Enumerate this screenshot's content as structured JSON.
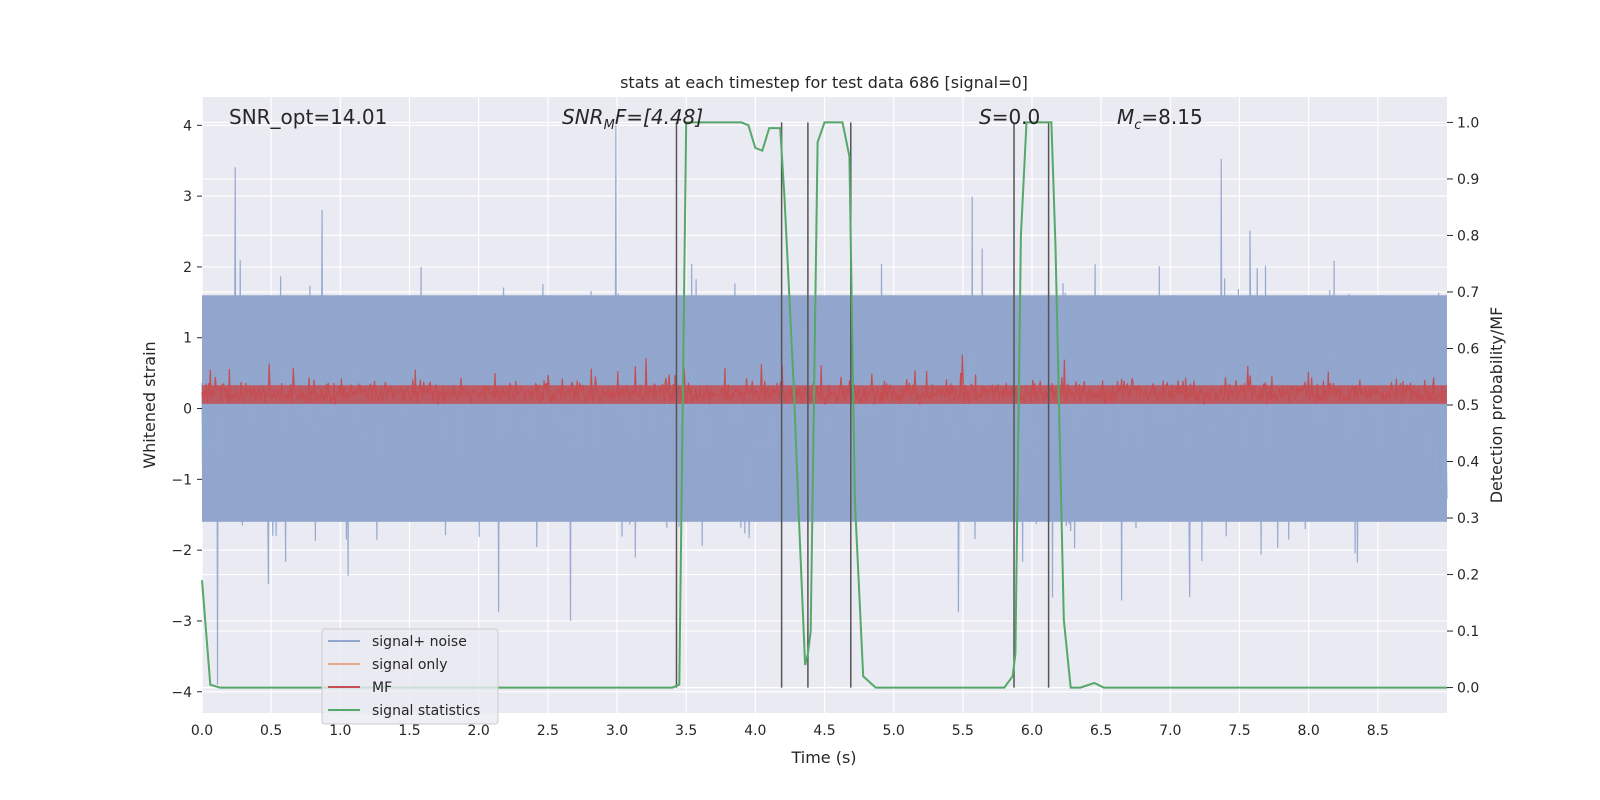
{
  "chart_data": {
    "type": "line",
    "title": "stats at each timestep for test data 686 [signal=0]",
    "xlabel": "Time (s)",
    "ylabel": "Whitened strain",
    "y2label": "Detection probability/MF",
    "xlim": [
      0.0,
      9.0
    ],
    "ylim": [
      -4.3,
      4.4
    ],
    "y2lim": [
      -0.045,
      1.045
    ],
    "grid": true,
    "legend_position": "lower-left",
    "x_ticks": [
      "0.0",
      "0.5",
      "1.0",
      "1.5",
      "2.0",
      "2.5",
      "3.0",
      "3.5",
      "4.0",
      "4.5",
      "5.0",
      "5.5",
      "6.0",
      "6.5",
      "7.0",
      "7.5",
      "8.0",
      "8.5"
    ],
    "y_ticks": [
      "4",
      "3",
      "2",
      "1",
      "0",
      "−1",
      "−2",
      "−3",
      "−4"
    ],
    "y2_ticks": [
      "1.0",
      "0.9",
      "0.8",
      "0.7",
      "0.6",
      "0.5",
      "0.4",
      "0.3",
      "0.2",
      "0.1",
      "0.0"
    ],
    "annotations": {
      "snr_opt": "SNR_opt=14.01",
      "snr_mf_main": "SNR",
      "snr_mf_sub": "M",
      "snr_mf_rest": "F=[4.48]",
      "s_main": "S",
      "s_rest": "=0.0",
      "mc_main": "M",
      "mc_sub": "c",
      "mc_rest": "=8.15"
    },
    "vertical_lines_x": [
      3.43,
      4.19,
      4.38,
      4.69,
      5.87,
      6.12
    ],
    "series": [
      {
        "name": "signal+ noise",
        "color": "#92a6cd",
        "description_values": "whitened strain noise, approx ±1.6 envelope with spikes to about 4 and -3.9"
      },
      {
        "name": "signal only",
        "color": "#e8a98a",
        "values": []
      },
      {
        "name": "MF",
        "color": "#c44e52",
        "range_y2": [
          0.5,
          0.6
        ]
      },
      {
        "name": "signal statistics",
        "color": "#55a868",
        "x": [
          0.0,
          0.06,
          0.13,
          3.33,
          3.4,
          3.45,
          3.5,
          3.6,
          3.7,
          3.9,
          3.95,
          4.0,
          4.05,
          4.1,
          4.18,
          4.21,
          4.28,
          4.31,
          4.36,
          4.38,
          4.4,
          4.45,
          4.5,
          4.6,
          4.63,
          4.68,
          4.72,
          4.78,
          4.87,
          5.8,
          5.86,
          5.88,
          5.92,
          5.96,
          6.0,
          6.1,
          6.14,
          6.17,
          6.23,
          6.28,
          6.35,
          6.45,
          6.52,
          9.0
        ],
        "values": [
          0.19,
          0.005,
          0.0,
          0.0,
          0.0,
          0.005,
          1.0,
          1.0,
          1.0,
          1.0,
          0.995,
          0.955,
          0.95,
          0.99,
          0.99,
          0.87,
          0.52,
          0.33,
          0.04,
          0.06,
          0.1,
          0.965,
          1.0,
          1.0,
          1.0,
          0.94,
          0.33,
          0.02,
          0.0,
          0.0,
          0.02,
          0.06,
          0.8,
          1.0,
          1.0,
          1.0,
          1.0,
          0.78,
          0.12,
          0.0,
          0.0,
          0.008,
          0.0,
          0.0
        ]
      }
    ]
  }
}
